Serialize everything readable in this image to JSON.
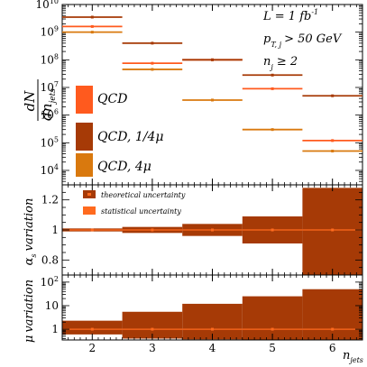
{
  "colors": {
    "qcd": "#ff5a1e",
    "qcd_quarter_mu": "#a63a06",
    "qcd_4mu": "#d9790e",
    "band": "#a63a06",
    "central": "#ff6a1e",
    "frame": "#000000"
  },
  "chart_data": [
    {
      "panel": "main",
      "type": "line",
      "yscale": "log",
      "ylabel": "dN/dn_jets",
      "ylim": [
        3000,
        10000000000
      ],
      "xlim": [
        1.5,
        6.5
      ],
      "y_ticks": [
        "10^4",
        "10^5",
        "10^6",
        "10^7",
        "10^8",
        "10^9",
        "10^10"
      ],
      "annotations": [
        "L = 1 fb^-1",
        "p_T,j > 50 GeV",
        "n_j ≥ 2"
      ],
      "legend_position": "left",
      "x_bins": [
        [
          1.5,
          2.5
        ],
        [
          2.5,
          3.5
        ],
        [
          3.5,
          4.5
        ],
        [
          4.5,
          5.5
        ],
        [
          5.5,
          6.5
        ]
      ],
      "series": [
        {
          "name": "QCD",
          "color_key": "qcd",
          "values": [
            1600000000,
            75000000,
            100000000,
            9000000,
            120000
          ]
        },
        {
          "name": "QCD, 1/4μ",
          "color_key": "qcd_quarter_mu",
          "values": [
            3500000000,
            400000000,
            100000000,
            28000000,
            5000000
          ]
        },
        {
          "name": "QCD, 4μ",
          "color_key": "qcd_4mu",
          "values": [
            1000000000,
            45000000,
            3500000,
            300000,
            50000
          ]
        }
      ]
    },
    {
      "panel": "alpha_s",
      "type": "area",
      "ylabel": "α_s variation",
      "ylim": [
        0.7,
        1.3
      ],
      "y_ticks": [
        "0.8",
        "1",
        "1.2"
      ],
      "legend_position": "top-left",
      "legend": [
        "theoretical uncertainty",
        "statistical uncertainty"
      ],
      "x_bins": [
        [
          1.5,
          2.5
        ],
        [
          2.5,
          3.5
        ],
        [
          3.5,
          4.5
        ],
        [
          4.5,
          5.5
        ],
        [
          5.5,
          6.5
        ]
      ],
      "band_low": [
        0.99,
        0.98,
        0.96,
        0.91,
        0.7
      ],
      "band_high": [
        1.01,
        1.02,
        1.04,
        1.09,
        1.28
      ],
      "central": [
        1,
        1,
        1,
        1,
        1
      ]
    },
    {
      "panel": "mu",
      "type": "area",
      "yscale": "log",
      "ylabel": "μ variation",
      "ylim": [
        0.35,
        200
      ],
      "y_ticks": [
        "1",
        "10",
        "10^2"
      ],
      "xlabel": "n_jets",
      "x_ticks": [
        2,
        3,
        4,
        5,
        6
      ],
      "x_bins": [
        [
          1.5,
          2.5
        ],
        [
          2.5,
          3.5
        ],
        [
          3.5,
          4.5
        ],
        [
          4.5,
          5.5
        ],
        [
          5.5,
          6.5
        ]
      ],
      "band_low": [
        0.6,
        0.4,
        0.37,
        0.36,
        0.35
      ],
      "band_high": [
        2.3,
        5.5,
        12,
        25,
        50
      ],
      "central": [
        1,
        1,
        1,
        1,
        1
      ]
    }
  ],
  "text": {
    "main_ylabel_num": "dN",
    "main_ylabel_den": "dn",
    "main_ylabel_den_sub": "jets",
    "ann_L": "L = 1 fb",
    "ann_L_sup": "-1",
    "ann_p": "p",
    "ann_p_sub": "T, j",
    "ann_p_rest": "> 50 GeV",
    "ann_n": "n",
    "ann_n_sub": "j",
    "ann_n_rest": "≥ 2",
    "legend_main": [
      "QCD",
      "QCD, 1/4μ",
      "QCD, 4μ"
    ],
    "legend_ratio": [
      "theoretical uncertainty",
      "statistical uncertainty"
    ],
    "alpha_label": "α",
    "alpha_sub": "s",
    "alpha_rest": "variation",
    "mu_label": "μ",
    "mu_rest": "variation",
    "xlabel_n": "n",
    "xlabel_sub": "jets",
    "main_ticks": [
      {
        "b": "10",
        "e": "4"
      },
      {
        "b": "10",
        "e": "5"
      },
      {
        "b": "10",
        "e": "6"
      },
      {
        "b": "10",
        "e": "7"
      },
      {
        "b": "10",
        "e": "8"
      },
      {
        "b": "10",
        "e": "9"
      },
      {
        "b": "10",
        "e": "10"
      }
    ],
    "alpha_ticks": [
      "0.8",
      "1",
      "1.2"
    ],
    "mu_ticks": [
      {
        "b": "1",
        "e": ""
      },
      {
        "b": "10",
        "e": ""
      },
      {
        "b": "10",
        "e": "2"
      }
    ],
    "x_ticks": [
      "2",
      "3",
      "4",
      "5",
      "6"
    ]
  }
}
